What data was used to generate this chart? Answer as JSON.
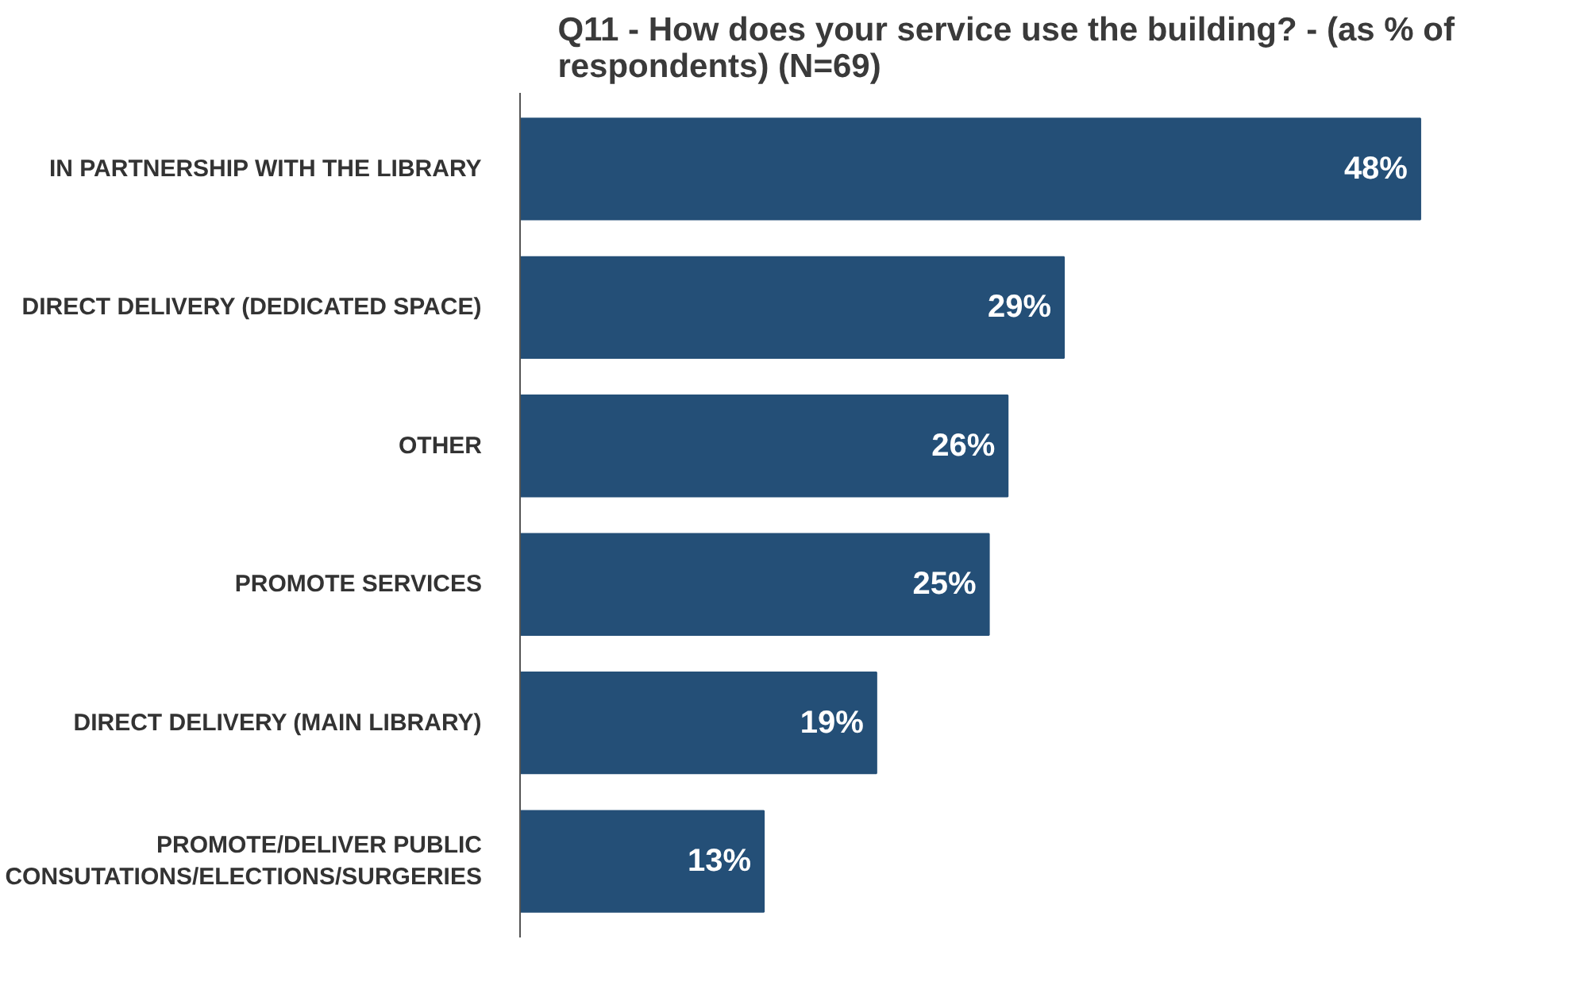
{
  "chart_data": {
    "type": "bar",
    "orientation": "horizontal",
    "title": "Q11 - How does your service use the building?  - (as % of respondents) (N=69)",
    "categories": [
      "IN PARTNERSHIP WITH THE LIBRARY",
      "DIRECT DELIVERY (DEDICATED SPACE)",
      "OTHER",
      "PROMOTE SERVICES",
      "DIRECT DELIVERY (MAIN LIBRARY)",
      "PROMOTE/DELIVER PUBLIC CONSUTATIONS/ELECTIONS/SURGERIES"
    ],
    "values": [
      48,
      29,
      26,
      25,
      19,
      13
    ],
    "value_labels": [
      "48%",
      "29%",
      "26%",
      "25%",
      "19%",
      "13%"
    ],
    "color": "#244f77"
  }
}
